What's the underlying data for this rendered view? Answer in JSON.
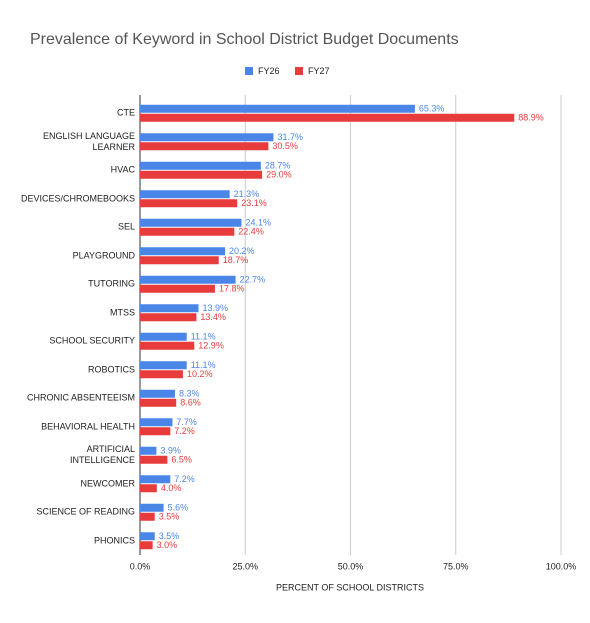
{
  "chart_data": {
    "type": "bar",
    "orientation": "horizontal",
    "title": "Prevalence of Keyword in School District Budget Documents",
    "x_label": "PERCENT OF SCHOOL DISTRICTS",
    "categories": [
      "CTE",
      "ENGLISH LANGUAGE\nLEARNER",
      "HVAC",
      "DEVICES/CHROMEBOOKS",
      "SEL",
      "PLAYGROUND",
      "TUTORING",
      "MTSS",
      "SCHOOL SECURITY",
      "ROBOTICS",
      "CHRONIC ABSENTEEISM",
      "BEHAVIORAL HEALTH",
      "ARTIFICIAL\nINTELLIGENCE",
      "NEWCOMER",
      "SCIENCE OF READING",
      "PHONICS"
    ],
    "series": [
      {
        "name": "FY26",
        "color": "#4a86e8",
        "values": [
          65.3,
          31.7,
          28.7,
          21.3,
          24.1,
          20.2,
          22.7,
          13.9,
          11.1,
          11.1,
          8.3,
          7.7,
          3.9,
          7.2,
          5.6,
          3.5
        ],
        "value_labels": [
          "65.3%",
          "31.7%",
          "28.7%",
          "21.3%",
          "24.1%",
          "20.2%",
          "22.7%",
          "13.9%",
          "11.1%",
          "11.1%",
          "8.3%",
          "7.7%",
          "3.9%",
          "7.2%",
          "5.6%",
          "3.5%"
        ]
      },
      {
        "name": "FY27",
        "color": "#e83c3c",
        "values": [
          88.9,
          30.5,
          29.0,
          23.1,
          22.4,
          18.7,
          17.8,
          13.4,
          12.9,
          10.2,
          8.6,
          7.2,
          6.5,
          4.0,
          3.5,
          3.0
        ],
        "value_labels": [
          "88.9%",
          "30.5%",
          "29.0%",
          "23.1%",
          "22.4%",
          "18.7%",
          "17.8%",
          "13.4%",
          "12.9%",
          "10.2%",
          "8.6%",
          "7.2%",
          "6.5%",
          "4.0%",
          "3.5%",
          "3.0%"
        ]
      }
    ],
    "xlim": [
      0,
      100
    ],
    "xticks": [
      {
        "value": 0,
        "label": "0.0%"
      },
      {
        "value": 25,
        "label": "25.0%"
      },
      {
        "value": 50,
        "label": "50.0%"
      },
      {
        "value": 75,
        "label": "75.0%"
      },
      {
        "value": 100,
        "label": "100.0%"
      }
    ],
    "grid": true,
    "legend": "top"
  }
}
